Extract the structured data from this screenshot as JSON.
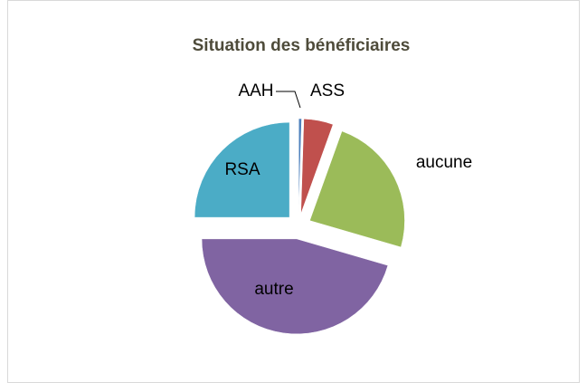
{
  "chart_data": {
    "type": "pie",
    "title": "Situation des bénéficiaires",
    "categories": [
      "AAH",
      "ASS",
      "aucune",
      "autre",
      "RSA"
    ],
    "values": [
      0.5,
      5,
      24,
      45.5,
      25
    ],
    "colors": [
      "#4f81bd",
      "#c0504d",
      "#9bbb59",
      "#8064a2",
      "#4bacc6"
    ]
  }
}
